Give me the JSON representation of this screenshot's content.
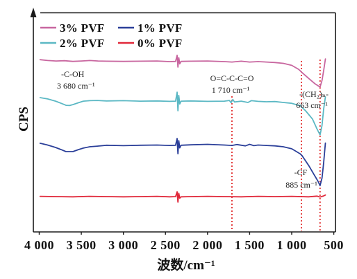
{
  "chart_data": {
    "type": "line",
    "xlabel": "波数/cm⁻¹",
    "ylabel": "CPS",
    "xlim": [
      4070,
      480
    ],
    "ylim": [
      0,
      100
    ],
    "grid": false,
    "legend": "top-left",
    "x_ticks": [
      {
        "value": 4000,
        "label": "4 000"
      },
      {
        "value": 3500,
        "label": "3 500"
      },
      {
        "value": 3000,
        "label": "3 000"
      },
      {
        "value": 2500,
        "label": "2 500"
      },
      {
        "value": 2000,
        "label": "2 000"
      },
      {
        "value": 1500,
        "label": "1 500"
      },
      {
        "value": 1000,
        "label": "1 000"
      },
      {
        "value": 500,
        "label": "500"
      }
    ],
    "series": [
      {
        "name": "3% PVF",
        "color": "#c8669f",
        "points": [
          [
            3990,
            78.5
          ],
          [
            3900,
            78.1
          ],
          [
            3800,
            77.9
          ],
          [
            3700,
            78.0
          ],
          [
            3600,
            77.7
          ],
          [
            3500,
            77.9
          ],
          [
            3400,
            78.1
          ],
          [
            3300,
            77.9
          ],
          [
            3200,
            77.8
          ],
          [
            3000,
            77.7
          ],
          [
            2800,
            77.8
          ],
          [
            2600,
            77.9
          ],
          [
            2450,
            77.6
          ],
          [
            2380,
            77.7
          ],
          [
            2362,
            80.5
          ],
          [
            2352,
            75.1
          ],
          [
            2342,
            79.4
          ],
          [
            2330,
            76.6
          ],
          [
            2315,
            77.7
          ],
          [
            2200,
            77.8
          ],
          [
            2000,
            77.9
          ],
          [
            1800,
            77.6
          ],
          [
            1710,
            77.4
          ],
          [
            1600,
            77.8
          ],
          [
            1500,
            77.4
          ],
          [
            1400,
            77.6
          ],
          [
            1300,
            77.4
          ],
          [
            1200,
            77.2
          ],
          [
            1100,
            76.8
          ],
          [
            1000,
            75.9
          ],
          [
            918,
            74.1
          ],
          [
            876,
            72.6
          ],
          [
            800,
            70.0
          ],
          [
            720,
            67.4
          ],
          [
            663,
            66.0
          ],
          [
            640,
            69.0
          ],
          [
            620,
            73.5
          ],
          [
            600,
            78.8
          ]
        ]
      },
      {
        "name": "1% PVF",
        "color": "#2b3f99",
        "points": [
          [
            3990,
            40.4
          ],
          [
            3900,
            39.6
          ],
          [
            3806,
            38.5
          ],
          [
            3740,
            37.5
          ],
          [
            3682,
            36.6
          ],
          [
            3600,
            36.6
          ],
          [
            3540,
            37.4
          ],
          [
            3476,
            38.2
          ],
          [
            3400,
            38.8
          ],
          [
            3311,
            39.1
          ],
          [
            3200,
            39.5
          ],
          [
            3000,
            39.3
          ],
          [
            2800,
            39.5
          ],
          [
            2600,
            39.6
          ],
          [
            2450,
            39.4
          ],
          [
            2380,
            39.5
          ],
          [
            2362,
            42.6
          ],
          [
            2352,
            35.6
          ],
          [
            2342,
            41.6
          ],
          [
            2330,
            38.3
          ],
          [
            2315,
            39.5
          ],
          [
            2200,
            39.7
          ],
          [
            2000,
            39.9
          ],
          [
            1800,
            39.6
          ],
          [
            1710,
            39.4
          ],
          [
            1650,
            39.8
          ],
          [
            1550,
            39.2
          ],
          [
            1500,
            39.9
          ],
          [
            1450,
            39.3
          ],
          [
            1400,
            39.6
          ],
          [
            1300,
            39.4
          ],
          [
            1200,
            39.2
          ],
          [
            1100,
            38.8
          ],
          [
            1000,
            37.9
          ],
          [
            900,
            35.6
          ],
          [
            876,
            34.7
          ],
          [
            794,
            30.0
          ],
          [
            736,
            26.2
          ],
          [
            686,
            23.0
          ],
          [
            663,
            21.1
          ],
          [
            640,
            24.5
          ],
          [
            620,
            31.5
          ],
          [
            600,
            40.5
          ]
        ]
      },
      {
        "name": "2% PVF",
        "color": "#5bb8c4",
        "points": [
          [
            3990,
            61.2
          ],
          [
            3900,
            60.6
          ],
          [
            3806,
            59.6
          ],
          [
            3740,
            58.6
          ],
          [
            3682,
            57.7
          ],
          [
            3640,
            57.6
          ],
          [
            3600,
            58.0
          ],
          [
            3540,
            58.8
          ],
          [
            3476,
            59.6
          ],
          [
            3400,
            59.8
          ],
          [
            3311,
            59.9
          ],
          [
            3200,
            59.7
          ],
          [
            3000,
            59.8
          ],
          [
            2800,
            59.6
          ],
          [
            2600,
            59.7
          ],
          [
            2450,
            59.5
          ],
          [
            2380,
            59.6
          ],
          [
            2362,
            63.7
          ],
          [
            2352,
            55.2
          ],
          [
            2342,
            62.2
          ],
          [
            2330,
            58.3
          ],
          [
            2315,
            59.6
          ],
          [
            2200,
            59.7
          ],
          [
            2000,
            59.5
          ],
          [
            1800,
            59.6
          ],
          [
            1740,
            59.9
          ],
          [
            1720,
            58.9
          ],
          [
            1700,
            60.3
          ],
          [
            1680,
            59.2
          ],
          [
            1600,
            59.6
          ],
          [
            1520,
            59.0
          ],
          [
            1480,
            59.8
          ],
          [
            1400,
            59.5
          ],
          [
            1300,
            59.3
          ],
          [
            1200,
            59.4
          ],
          [
            1100,
            59.0
          ],
          [
            1000,
            58.6
          ],
          [
            900,
            57.5
          ],
          [
            835,
            55.2
          ],
          [
            752,
            51.4
          ],
          [
            700,
            47.0
          ],
          [
            663,
            44.2
          ],
          [
            640,
            48.5
          ],
          [
            620,
            56.0
          ],
          [
            600,
            61.5
          ]
        ]
      },
      {
        "name": "0% PVF",
        "color": "#e0283a",
        "points": [
          [
            3990,
            16.2
          ],
          [
            3800,
            16.1
          ],
          [
            3600,
            16.0
          ],
          [
            3400,
            16.2
          ],
          [
            3200,
            16.1
          ],
          [
            3000,
            16.0
          ],
          [
            2800,
            16.1
          ],
          [
            2600,
            16.2
          ],
          [
            2450,
            16.0
          ],
          [
            2380,
            16.1
          ],
          [
            2362,
            18.3
          ],
          [
            2352,
            13.6
          ],
          [
            2342,
            17.6
          ],
          [
            2330,
            15.4
          ],
          [
            2315,
            16.0
          ],
          [
            2200,
            16.1
          ],
          [
            2000,
            16.2
          ],
          [
            1800,
            16.1
          ],
          [
            1600,
            16.0
          ],
          [
            1400,
            16.2
          ],
          [
            1200,
            16.1
          ],
          [
            1000,
            16.2
          ],
          [
            800,
            16.0
          ],
          [
            700,
            16.3
          ],
          [
            663,
            15.9
          ],
          [
            620,
            16.4
          ],
          [
            600,
            16.8
          ]
        ]
      }
    ],
    "annotations": [
      {
        "group": "-C-OH",
        "label": "3 680 cm⁻¹"
      },
      {
        "group": "O=C-C-C=O",
        "label": "1 710 cm⁻¹"
      },
      {
        "group": "-(CH₂)ₙ-",
        "label": "663 cm⁻¹"
      },
      {
        "group": "-CF",
        "label": "885 cm⁻¹"
      }
    ],
    "marker_lines": [
      1710,
      885,
      663
    ],
    "marker_color": "#e02020",
    "axis_color": "#1a1a1a"
  }
}
